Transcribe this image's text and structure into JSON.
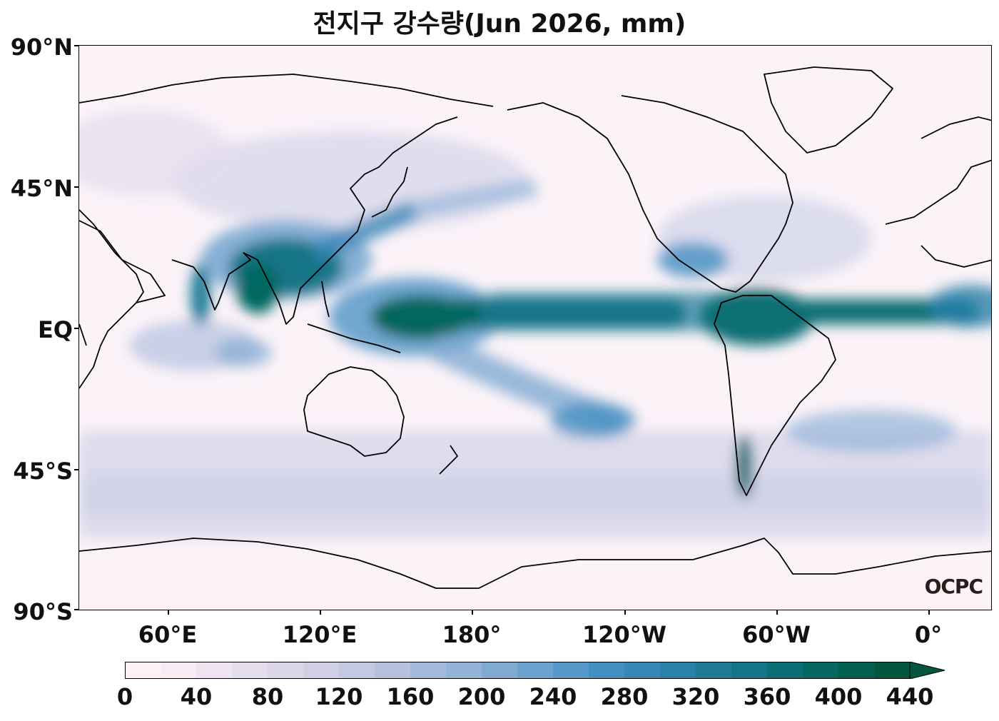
{
  "title": "전지구 강수량(Jun 2026, mm)",
  "lat_labels": [
    "90°N",
    "45°N",
    "EQ",
    "45°S",
    "90°S"
  ],
  "lon_labels": [
    "60°E",
    "120°E",
    "180°",
    "120°W",
    "60°W",
    "0°"
  ],
  "colorbar": {
    "tick_labels": [
      "0",
      "40",
      "80",
      "120",
      "160",
      "200",
      "240",
      "280",
      "320",
      "360",
      "400",
      "440"
    ],
    "levels": [
      0,
      20,
      40,
      60,
      80,
      100,
      120,
      140,
      160,
      180,
      200,
      220,
      240,
      260,
      280,
      300,
      320,
      340,
      360,
      380,
      400,
      420,
      440
    ],
    "colors": [
      "#fbf3f8",
      "#f5ecf4",
      "#eee5f0",
      "#e6ddec",
      "#dcd6e9",
      "#d0cfe6",
      "#c3c8e3",
      "#b4c1df",
      "#a4badb",
      "#93b3d7",
      "#80aad2",
      "#6ca2ce",
      "#5799c8",
      "#448fc1",
      "#3686b6",
      "#2b80a8",
      "#1f7b98",
      "#137586",
      "#0a6f74",
      "#066860",
      "#04604e",
      "#03573f"
    ],
    "extend": "max"
  },
  "watermark": "OCPC"
}
